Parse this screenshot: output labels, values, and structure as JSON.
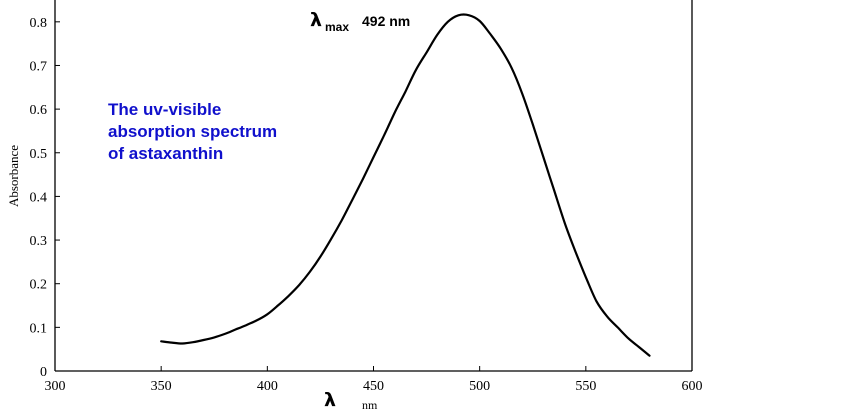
{
  "chart_data": {
    "type": "line",
    "ylabel": "Absorbance",
    "xlabel_symbol": "λ",
    "xlabel_unit": "nm",
    "xlim": [
      300,
      600
    ],
    "ylim": [
      0,
      0.85
    ],
    "x_ticks": [
      300,
      350,
      400,
      450,
      500,
      550,
      600
    ],
    "y_ticks": [
      0,
      0.1,
      0.2,
      0.3,
      0.4,
      0.5,
      0.6,
      0.7,
      0.8
    ],
    "y_tick_labels": [
      "0",
      "0.1",
      "0.2",
      "0.3",
      "0.4",
      "0.5",
      "0.6",
      "0.7",
      "0.8"
    ],
    "grid": false,
    "series": [
      {
        "color": "#000000",
        "x": [
          350,
          355,
          360,
          365,
          370,
          375,
          380,
          385,
          390,
          395,
          400,
          405,
          410,
          415,
          420,
          425,
          430,
          435,
          440,
          445,
          450,
          455,
          460,
          465,
          470,
          475,
          480,
          485,
          490,
          495,
          500,
          505,
          510,
          515,
          520,
          525,
          530,
          535,
          540,
          545,
          550,
          555,
          560,
          565,
          570,
          575,
          580
        ],
        "y": [
          0.068,
          0.065,
          0.063,
          0.066,
          0.071,
          0.077,
          0.085,
          0.095,
          0.105,
          0.116,
          0.13,
          0.15,
          0.172,
          0.197,
          0.227,
          0.262,
          0.302,
          0.345,
          0.392,
          0.44,
          0.49,
          0.54,
          0.592,
          0.64,
          0.69,
          0.73,
          0.77,
          0.8,
          0.815,
          0.815,
          0.802,
          0.772,
          0.738,
          0.695,
          0.636,
          0.565,
          0.49,
          0.415,
          0.34,
          0.275,
          0.215,
          0.16,
          0.125,
          0.1,
          0.075,
          0.055,
          0.035
        ]
      }
    ],
    "annotations": {
      "lambda_symbol": "λ",
      "lambda_subscript": "max",
      "lambda_value": "492 nm",
      "note_lines": [
        "The uv-visible",
        "absorption spectrum",
        "of astaxanthin"
      ],
      "note_color": "#1010cc"
    }
  }
}
